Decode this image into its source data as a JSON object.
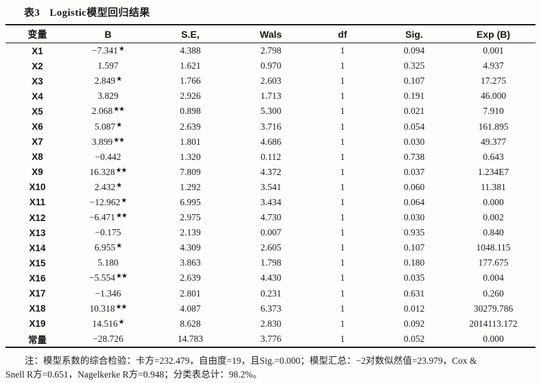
{
  "title": {
    "label": "表3",
    "text": "Logistic模型回归结果"
  },
  "colors": {
    "text": "#1b1b1b",
    "rule": "#1a1a1a",
    "background": "#fdfdfc"
  },
  "chart_data": {
    "type": "table",
    "title": "表3 Logistic模型回归结果",
    "columns": [
      "变量",
      "B",
      "S.E,",
      "Wals",
      "df",
      "Sig.",
      "Exp (B)"
    ],
    "rows": [
      {
        "variable": "X1",
        "b": "−7.341",
        "stars": "★",
        "se": "4.388",
        "wals": "2.798",
        "df": "1",
        "sig": "0.094",
        "exp_b": "0.001"
      },
      {
        "variable": "X2",
        "b": "1.597",
        "stars": "",
        "se": "1.621",
        "wals": "0.970",
        "df": "1",
        "sig": "0.325",
        "exp_b": "4.937"
      },
      {
        "variable": "X3",
        "b": "2.849",
        "stars": "★",
        "se": "1.766",
        "wals": "2.603",
        "df": "1",
        "sig": "0.107",
        "exp_b": "17.275"
      },
      {
        "variable": "X4",
        "b": "3.829",
        "stars": "",
        "se": "2.926",
        "wals": "1.713",
        "df": "1",
        "sig": "0.191",
        "exp_b": "46.000"
      },
      {
        "variable": "X5",
        "b": "2.068",
        "stars": "★★",
        "se": "0.898",
        "wals": "5.300",
        "df": "1",
        "sig": "0.021",
        "exp_b": "7.910"
      },
      {
        "variable": "X6",
        "b": "5.087",
        "stars": "★",
        "se": "2.639",
        "wals": "3.716",
        "df": "1",
        "sig": "0.054",
        "exp_b": "161.895"
      },
      {
        "variable": "X7",
        "b": "3.899",
        "stars": "★★",
        "se": "1.801",
        "wals": "4.686",
        "df": "1",
        "sig": "0.030",
        "exp_b": "49.377"
      },
      {
        "variable": "X8",
        "b": "−0.442",
        "stars": "",
        "se": "1.320",
        "wals": "0.112",
        "df": "1",
        "sig": "0.738",
        "exp_b": "0.643"
      },
      {
        "variable": "X9",
        "b": "16.328",
        "stars": "★★",
        "se": "7.809",
        "wals": "4.372",
        "df": "1",
        "sig": "0.037",
        "exp_b": "1.234E7"
      },
      {
        "variable": "X10",
        "b": "2.432",
        "stars": "★",
        "se": "1.292",
        "wals": "3.541",
        "df": "1",
        "sig": "0.060",
        "exp_b": "11.381"
      },
      {
        "variable": "X11",
        "b": "−12.962",
        "stars": "★",
        "se": "6.995",
        "wals": "3.434",
        "df": "1",
        "sig": "0.064",
        "exp_b": "0.000"
      },
      {
        "variable": "X12",
        "b": "−6.471",
        "stars": "★★",
        "se": "2.975",
        "wals": "4.730",
        "df": "1",
        "sig": "0.030",
        "exp_b": "0.002"
      },
      {
        "variable": "X13",
        "b": "−0.175",
        "stars": "",
        "se": "2.139",
        "wals": "0.007",
        "df": "1",
        "sig": "0.935",
        "exp_b": "0.840"
      },
      {
        "variable": "X14",
        "b": "6.955",
        "stars": "★",
        "se": "4.309",
        "wals": "2.605",
        "df": "1",
        "sig": "0.107",
        "exp_b": "1048.115"
      },
      {
        "variable": "X15",
        "b": "5.180",
        "stars": "",
        "se": "3.863",
        "wals": "1.798",
        "df": "1",
        "sig": "0.180",
        "exp_b": "177.675"
      },
      {
        "variable": "X16",
        "b": "−5.554",
        "stars": "★★",
        "se": "2.639",
        "wals": "4.430",
        "df": "1",
        "sig": "0.035",
        "exp_b": "0.004"
      },
      {
        "variable": "X17",
        "b": "−1.346",
        "stars": "",
        "se": "2.801",
        "wals": "0.231",
        "df": "1",
        "sig": "0.631",
        "exp_b": "0.260"
      },
      {
        "variable": "X18",
        "b": "10.318",
        "stars": "★★",
        "se": "4.087",
        "wals": "6.373",
        "df": "1",
        "sig": "0.012",
        "exp_b": "30279.786"
      },
      {
        "variable": "X19",
        "b": "14.516",
        "stars": "★",
        "se": "8.628",
        "wals": "2.830",
        "df": "1",
        "sig": "0.092",
        "exp_b": "2014113.172"
      },
      {
        "variable": "常量",
        "b": "−28.726",
        "stars": "",
        "se": "14.783",
        "wals": "3.776",
        "df": "1",
        "sig": "0.052",
        "exp_b": "0.000"
      }
    ]
  },
  "footnote": {
    "line1": "注：模型系数的综合检验：卡方=232.479，自由度=19，且Sig.=0.000；模型汇总：−2对数似然值=23.979，Cox &",
    "line2": "Snell R方=0.651，Nagelkerke R方=0.948；分类表总计：98.2%。"
  }
}
